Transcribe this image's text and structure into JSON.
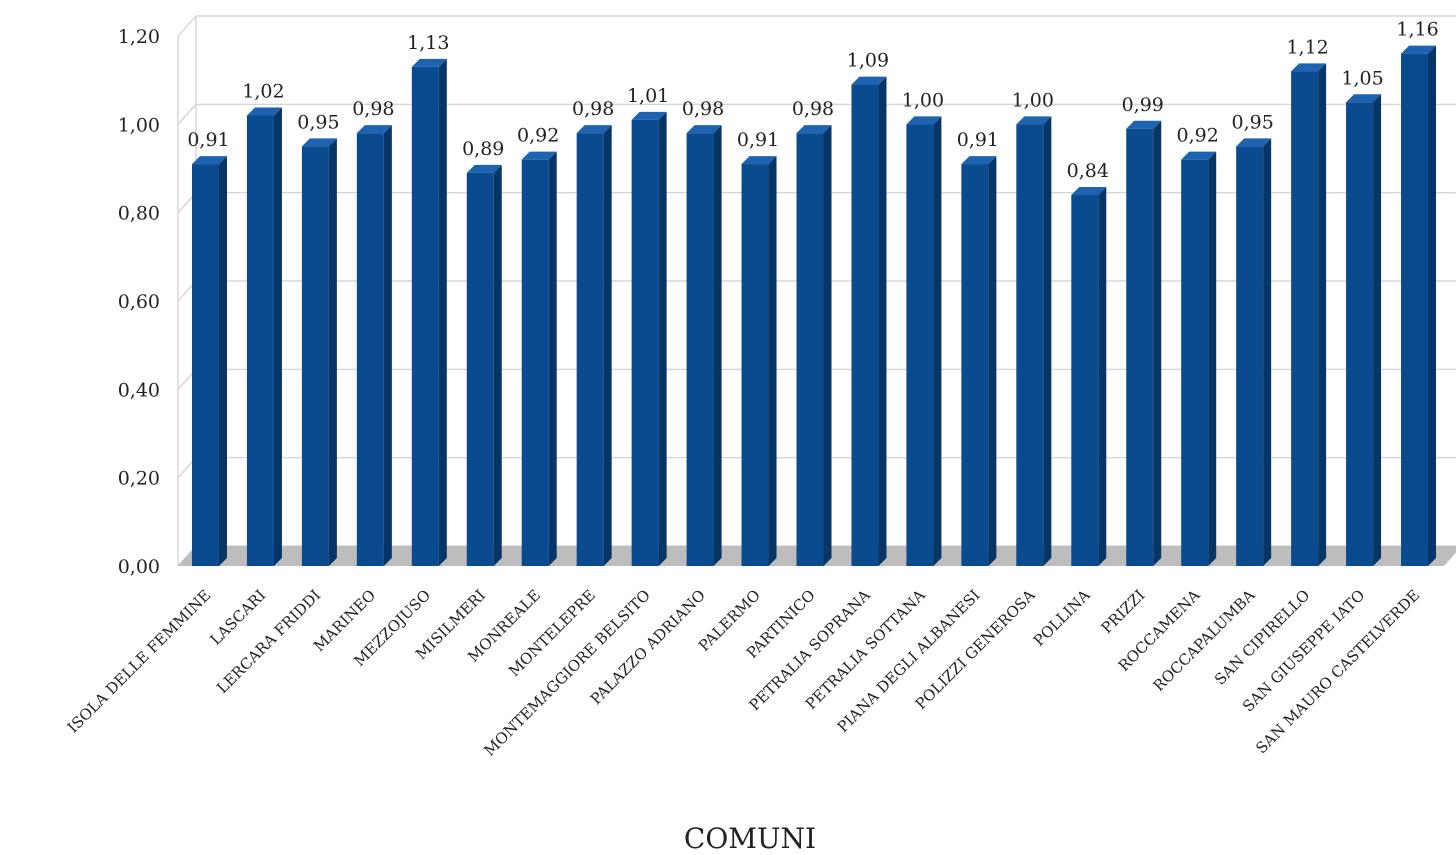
{
  "chart_data": {
    "type": "bar",
    "title": "",
    "xlabel": "COMUNI",
    "ylabel": "",
    "ylim": [
      0,
      1.2
    ],
    "y_ticks": [
      "0,00",
      "0,20",
      "0,40",
      "0,60",
      "0,80",
      "1,00",
      "1,20"
    ],
    "grid": true,
    "legend": "none",
    "categories": [
      "ISOLA DELLE FEMMINE",
      "LASCARI",
      "LERCARA FRIDDI",
      "MARINEO",
      "MEZZOJUSO",
      "MISILMERI",
      "MONREALE",
      "MONTELEPRE",
      "MONTEMAGGIORE BELSITO",
      "PALAZZO ADRIANO",
      "PALERMO",
      "PARTINICO",
      "PETRALIA SOPRANA",
      "PETRALIA SOTTANA",
      "PIANA DEGLI ALBANESI",
      "POLIZZI GENEROSA",
      "POLLINA",
      "PRIZZI",
      "ROCCAMENA",
      "ROCCAPALUMBA",
      "SAN CIPIRELLO",
      "SAN GIUSEPPE IATO",
      "SAN MAURO CASTELVERDE"
    ],
    "values": [
      0.91,
      1.02,
      0.95,
      0.98,
      1.13,
      0.89,
      0.92,
      0.98,
      1.01,
      0.98,
      0.91,
      0.98,
      1.09,
      1.0,
      0.91,
      1.0,
      0.84,
      0.99,
      0.92,
      0.95,
      1.12,
      1.05,
      1.16
    ],
    "value_labels": [
      "0,91",
      "1,02",
      "0,95",
      "0,98",
      "1,13",
      "0,89",
      "0,92",
      "0,98",
      "1,01",
      "0,98",
      "0,91",
      "0,98",
      "1,09",
      "1,00",
      "0,91",
      "1,00",
      "0,84",
      "0,99",
      "0,92",
      "0,95",
      "1,12",
      "1,05",
      "1,16"
    ],
    "colors": {
      "bar_front": "#0a4a8f",
      "bar_side": "#063566",
      "bar_top": "#1d63b0",
      "floor": "#bdbdbd",
      "grid": "#cfcfcf"
    }
  }
}
